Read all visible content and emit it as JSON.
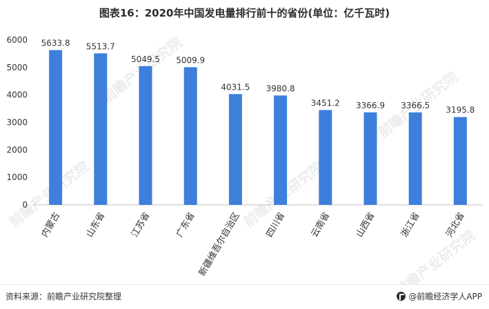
{
  "title": "图表16：2020年中国发电量排行前十的省份(单位：亿千瓦时)",
  "source": "资料来源：前瞻产业研究院整理",
  "brand": "@前瞻经济学人APP",
  "watermark": "前瞻产业研究院",
  "colors": {
    "bar": "#3e7fdc",
    "axis": "#bfbfbf",
    "text": "#333333",
    "watermark": "#dddddd"
  },
  "chart_data": {
    "type": "bar",
    "categories": [
      "内蒙古",
      "山东省",
      "江苏省",
      "广东省",
      "新疆维吾尔自治区",
      "四川省",
      "云南省",
      "山西省",
      "浙江省",
      "河北省"
    ],
    "values": [
      5633.8,
      5513.7,
      5049.5,
      5009.9,
      4031.5,
      3980.8,
      3451.2,
      3366.9,
      3366.5,
      3195.8
    ],
    "value_labels": [
      "5633.8",
      "5513.7",
      "5049.5",
      "5009.9",
      "4031.5",
      "3980.8",
      "3451.2",
      "3366.9",
      "3366.5",
      "3195.8"
    ],
    "yticks": [
      "0",
      "1000",
      "2000",
      "3000",
      "4000",
      "5000",
      "6000"
    ],
    "ylim": [
      0,
      6000
    ],
    "grid": false,
    "legend": "none"
  }
}
